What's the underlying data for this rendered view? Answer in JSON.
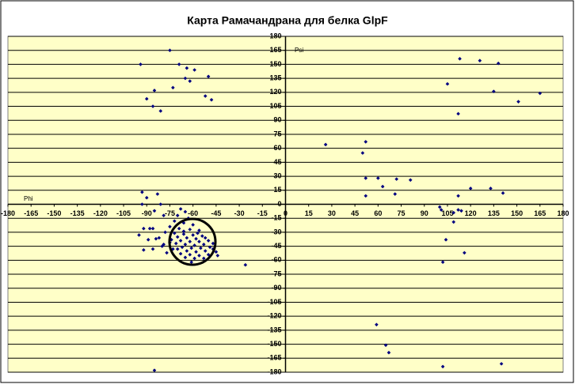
{
  "chart_data": {
    "type": "scatter",
    "title": "Карта Рамачандрана  для белка GlpF",
    "xlabel": "Phi",
    "ylabel": "Psi",
    "color": "#000080",
    "grid": true,
    "xlim": [
      -180,
      180
    ],
    "ylim": [
      -180,
      180
    ],
    "xticks": [
      -180,
      -165,
      -150,
      -135,
      -120,
      -105,
      -90,
      -75,
      -60,
      -45,
      -30,
      -15,
      0,
      15,
      30,
      45,
      60,
      75,
      90,
      105,
      120,
      135,
      150,
      165,
      180
    ],
    "yticks": [
      -180,
      -165,
      -150,
      -135,
      -120,
      -105,
      -90,
      -75,
      -60,
      -45,
      -30,
      -15,
      0,
      15,
      30,
      45,
      60,
      75,
      90,
      105,
      120,
      135,
      150,
      165,
      180
    ],
    "x": [
      -75,
      -94,
      -69,
      -64,
      -59,
      -50,
      -65,
      -62,
      -73,
      -85,
      -90,
      -52,
      -48,
      -86,
      -81,
      113,
      126,
      138,
      105,
      135,
      151,
      165,
      112,
      26,
      52,
      50,
      52,
      60,
      72,
      63,
      81,
      71,
      52,
      100,
      101,
      112,
      120,
      112,
      114,
      109,
      133,
      141,
      104,
      102,
      116,
      109,
      59,
      65,
      67,
      102,
      140,
      -85,
      -93,
      -83,
      -90,
      -93,
      -81,
      -85,
      -79,
      -92,
      -88,
      -86,
      -95,
      -92,
      -86,
      -89,
      -79,
      -84,
      -26,
      -44,
      -47,
      -68,
      -65,
      -70,
      -63,
      -72,
      -66,
      -60,
      -75,
      -69,
      -62,
      -56,
      -78,
      -72,
      -66,
      -60,
      -54,
      -70,
      -64,
      -58,
      -52,
      -74,
      -68,
      -62,
      -56,
      -50,
      -71,
      -65,
      -59,
      -53,
      -67,
      -61,
      -55,
      -49,
      -73,
      -64,
      -58,
      -52,
      -68,
      -62,
      -56,
      -50,
      -65,
      -59,
      -53,
      -80,
      -77,
      -82,
      -47,
      -45,
      -61,
      -57,
      -66,
      -75,
      -70
    ],
    "y": [
      165,
      150,
      150,
      146,
      144,
      137,
      135,
      132,
      125,
      122,
      113,
      116,
      112,
      105,
      100,
      156,
      154,
      151,
      129,
      121,
      110,
      119,
      97,
      64,
      67,
      55,
      28,
      28,
      27,
      19,
      26,
      11,
      9,
      -3,
      -6,
      9,
      17,
      -6,
      -7,
      -19,
      17,
      12,
      -38,
      -62,
      -52,
      -9,
      -129,
      -151,
      -159,
      -174,
      -171,
      -178,
      13,
      11,
      7,
      0,
      0,
      -7,
      -12,
      -26,
      -26,
      -26,
      -33,
      -49,
      -48,
      -38,
      -43,
      -37,
      -65,
      -55,
      -48,
      -5,
      -8,
      -12,
      -15,
      -18,
      -20,
      -22,
      -24,
      -26,
      -27,
      -28,
      -30,
      -31,
      -32,
      -33,
      -34,
      -35,
      -36,
      -37,
      -36,
      -38,
      -39,
      -40,
      -40,
      -39,
      -42,
      -43,
      -44,
      -43,
      -46,
      -47,
      -47,
      -46,
      -48,
      -50,
      -51,
      -50,
      -53,
      -54,
      -55,
      -54,
      -57,
      -58,
      -58,
      -45,
      -52,
      -36,
      -42,
      -51,
      -62,
      -31,
      -29,
      -41,
      -48
    ]
  }
}
